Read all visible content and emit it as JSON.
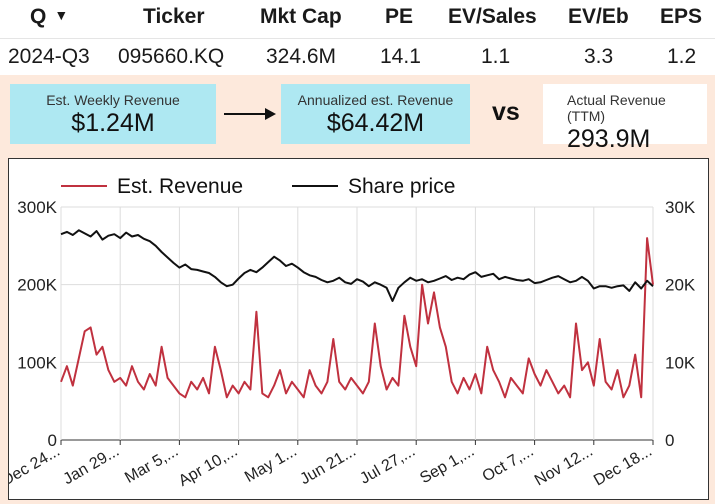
{
  "table": {
    "headers": [
      {
        "label": "Q",
        "key": "q"
      },
      {
        "label": "Ticker",
        "key": "ticker"
      },
      {
        "label": "Mkt Cap",
        "key": "mktcap"
      },
      {
        "label": "PE",
        "key": "pe"
      },
      {
        "label": "EV/Sales",
        "key": "evsales"
      },
      {
        "label": "EV/Eb",
        "key": "eveb"
      },
      {
        "label": "EPS",
        "key": "eps"
      }
    ],
    "row": {
      "q": "2024-Q3",
      "ticker": "095660.KQ",
      "mktcap": "324.6M",
      "pe": "14.1",
      "evsales": "1.1",
      "eveb": "3.3",
      "eps": "1.2"
    }
  },
  "metrics": {
    "weekly": {
      "label": "Est. Weekly Revenue",
      "value": "$1.24M"
    },
    "annualized": {
      "label": "Annualized est. Revenue",
      "value": "$64.42M"
    },
    "vs_label": "vs",
    "actual": {
      "label": "Actual Revenue (TTM)",
      "value": "293.9M"
    }
  },
  "colors": {
    "cyan": "#aee8f2",
    "revenue": "#c0313f",
    "price": "#111111",
    "background": "#fde9dc"
  },
  "chart_data": {
    "type": "line",
    "legend_position": "top",
    "grid": true,
    "x_tick_labels": [
      "Dec 24...",
      "Jan 29...",
      "Mar 5,...",
      "Apr 10,...",
      "May 1...",
      "Jun 21...",
      "Jul 27,...",
      "Sep 1,...",
      "Oct 7,...",
      "Nov 12...",
      "Dec 18..."
    ],
    "x_range": [
      0,
      100
    ],
    "y_left": {
      "range": [
        0,
        300000
      ],
      "ticks": [
        0,
        100000,
        200000,
        300000
      ],
      "tick_labels": [
        "0",
        "100K",
        "200K",
        "300K"
      ]
    },
    "y_right": {
      "range": [
        0,
        30000
      ],
      "ticks": [
        0,
        10000,
        20000,
        30000
      ],
      "tick_labels": [
        "0",
        "10K",
        "20K",
        "30K"
      ]
    },
    "series": [
      {
        "name": "Est. Revenue",
        "axis": "left",
        "color": "#c0313f",
        "x": [
          0,
          1,
          2,
          3,
          4,
          5,
          6,
          7,
          8,
          9,
          10,
          11,
          12,
          13,
          14,
          15,
          16,
          17,
          18,
          19,
          20,
          21,
          22,
          23,
          24,
          25,
          26,
          27,
          28,
          29,
          30,
          31,
          32,
          33,
          34,
          35,
          36,
          37,
          38,
          39,
          40,
          41,
          42,
          43,
          44,
          45,
          46,
          47,
          48,
          49,
          50,
          51,
          52,
          53,
          54,
          55,
          56,
          57,
          58,
          59,
          60,
          61,
          62,
          63,
          64,
          65,
          66,
          67,
          68,
          69,
          70,
          71,
          72,
          73,
          74,
          75,
          76,
          77,
          78,
          79,
          80,
          81,
          82,
          83,
          84,
          85,
          86,
          87,
          88,
          89,
          90,
          91,
          92,
          93,
          94,
          95,
          96,
          97,
          98,
          99,
          100
        ],
        "values": [
          75000,
          95000,
          70000,
          105000,
          140000,
          145000,
          110000,
          120000,
          90000,
          75000,
          80000,
          70000,
          95000,
          75000,
          65000,
          85000,
          70000,
          120000,
          80000,
          70000,
          60000,
          55000,
          75000,
          65000,
          80000,
          60000,
          120000,
          90000,
          55000,
          70000,
          60000,
          75000,
          65000,
          165000,
          60000,
          55000,
          70000,
          90000,
          60000,
          75000,
          65000,
          55000,
          90000,
          70000,
          60000,
          75000,
          130000,
          75000,
          65000,
          80000,
          70000,
          60000,
          75000,
          150000,
          95000,
          65000,
          80000,
          70000,
          160000,
          120000,
          95000,
          200000,
          150000,
          190000,
          145000,
          120000,
          75000,
          60000,
          80000,
          65000,
          85000,
          60000,
          120000,
          90000,
          75000,
          55000,
          80000,
          70000,
          60000,
          105000,
          85000,
          70000,
          90000,
          75000,
          60000,
          70000,
          55000,
          150000,
          90000,
          100000,
          70000,
          130000,
          75000,
          65000,
          90000,
          55000,
          70000,
          110000,
          55000,
          260000,
          200000
        ]
      },
      {
        "name": "Share price",
        "axis": "right",
        "color": "#111111",
        "x": [
          0,
          1,
          2,
          3,
          4,
          5,
          6,
          7,
          8,
          9,
          10,
          11,
          12,
          13,
          14,
          15,
          16,
          17,
          18,
          19,
          20,
          21,
          22,
          23,
          24,
          25,
          26,
          27,
          28,
          29,
          30,
          31,
          32,
          33,
          34,
          35,
          36,
          37,
          38,
          39,
          40,
          41,
          42,
          43,
          44,
          45,
          46,
          47,
          48,
          49,
          50,
          51,
          52,
          53,
          54,
          55,
          56,
          57,
          58,
          59,
          60,
          61,
          62,
          63,
          64,
          65,
          66,
          67,
          68,
          69,
          70,
          71,
          72,
          73,
          74,
          75,
          76,
          77,
          78,
          79,
          80,
          81,
          82,
          83,
          84,
          85,
          86,
          87,
          88,
          89,
          90,
          91,
          92,
          93,
          94,
          95,
          96,
          97,
          98,
          99,
          100
        ],
        "values": [
          26500,
          26800,
          26400,
          27000,
          26600,
          26200,
          26900,
          25800,
          26300,
          26500,
          26000,
          26700,
          26200,
          26400,
          25900,
          25600,
          25000,
          24200,
          23500,
          22800,
          22200,
          22600,
          22000,
          21900,
          21700,
          21500,
          21000,
          20300,
          19800,
          20000,
          20800,
          21500,
          21900,
          21600,
          22200,
          22900,
          23600,
          23100,
          22400,
          22700,
          22200,
          21600,
          21200,
          21000,
          20600,
          20300,
          20500,
          20900,
          20300,
          20100,
          20700,
          20400,
          19800,
          20300,
          20000,
          19600,
          17900,
          19600,
          20300,
          20900,
          20500,
          20700,
          20300,
          20500,
          20800,
          21100,
          20600,
          20900,
          20700,
          21300,
          21600,
          21000,
          21200,
          21400,
          20700,
          21000,
          20800,
          20600,
          20500,
          20700,
          20200,
          20300,
          20600,
          20900,
          21100,
          20700,
          20300,
          20500,
          21000,
          20500,
          19500,
          19800,
          19800,
          19600,
          19800,
          19900,
          19200,
          20300,
          19500,
          20500,
          19800
        ]
      }
    ]
  }
}
